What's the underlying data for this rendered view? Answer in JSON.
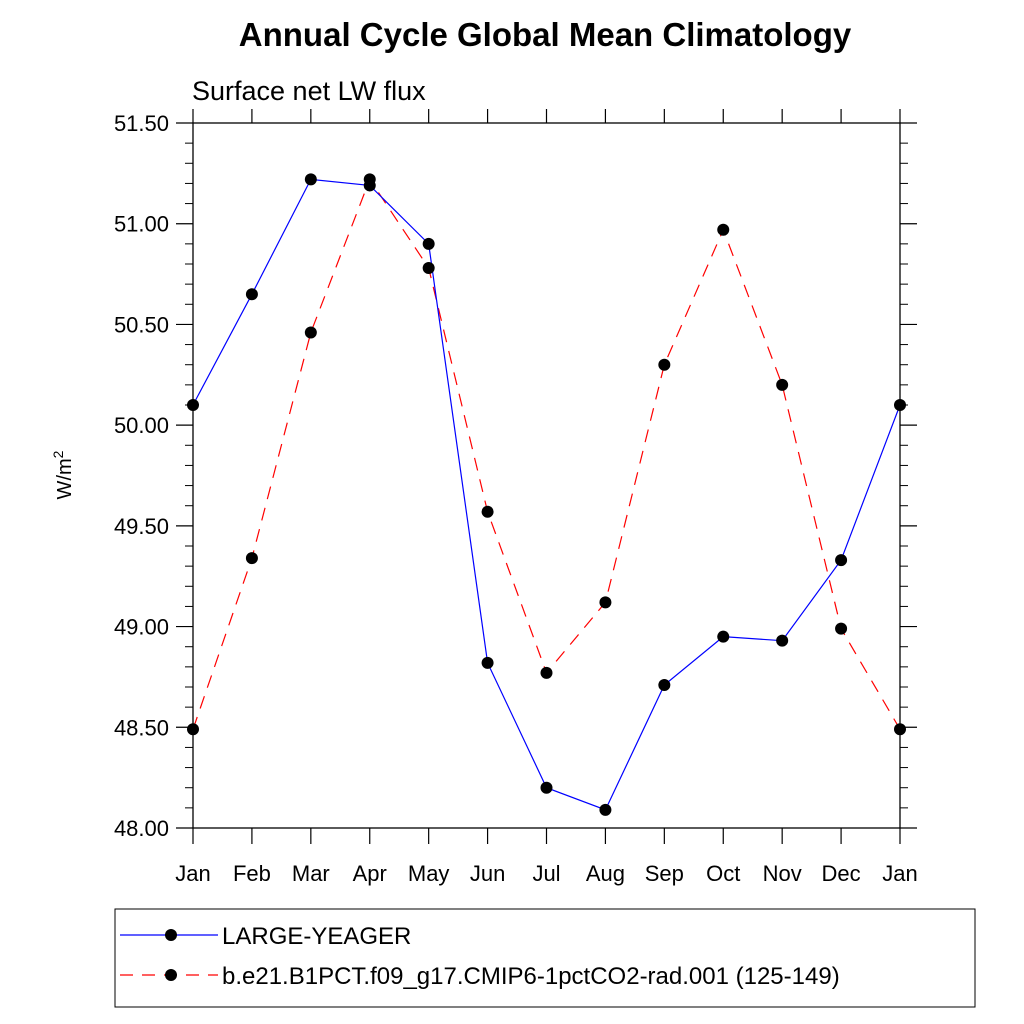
{
  "chart_data": {
    "type": "line",
    "title": "Annual Cycle Global Mean Climatology",
    "subtitle": "Surface net LW flux",
    "ylabel": "W/m",
    "ylabel_superscript": "2",
    "xlabel": "",
    "categories": [
      "Jan",
      "Feb",
      "Mar",
      "Apr",
      "May",
      "Jun",
      "Jul",
      "Aug",
      "Sep",
      "Oct",
      "Nov",
      "Dec",
      "Jan"
    ],
    "ylim": [
      48.0,
      51.5
    ],
    "yticks": [
      48.0,
      48.5,
      49.0,
      49.5,
      50.0,
      50.5,
      51.0,
      51.5
    ],
    "ytick_labels": [
      "48.00",
      "48.50",
      "49.00",
      "49.50",
      "50.00",
      "50.50",
      "51.00",
      "51.50"
    ],
    "series": [
      {
        "name": "LARGE-YEAGER",
        "color": "#0000ff",
        "dash": "solid",
        "values": [
          50.1,
          50.65,
          51.22,
          51.19,
          50.9,
          48.82,
          48.2,
          48.09,
          48.71,
          48.95,
          48.93,
          49.33,
          50.1
        ]
      },
      {
        "name": "b.e21.B1PCT.f09_g17.CMIP6-1pctCO2-rad.001 (125-149)",
        "color": "#ff0000",
        "dash": "dashed",
        "values": [
          48.49,
          49.34,
          50.46,
          51.22,
          50.78,
          49.57,
          48.77,
          49.12,
          50.3,
          50.97,
          50.2,
          48.99,
          48.49
        ]
      }
    ],
    "marker_color": "#000000",
    "legend_position": "bottom"
  }
}
